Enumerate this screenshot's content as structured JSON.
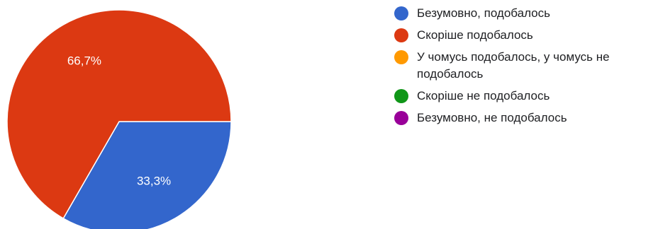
{
  "chart_data": {
    "type": "pie",
    "title": "",
    "slices": [
      {
        "label": "Безумовно, подобалось",
        "value": 33.3,
        "display": "33,3%",
        "color": "#3366cc"
      },
      {
        "label": "Скоріше подобалось",
        "value": 66.7,
        "display": "66,7%",
        "color": "#dc3912"
      },
      {
        "label": "У чомусь подобалось, у чомусь не подобалось",
        "value": 0,
        "display": "",
        "color": "#ff9900"
      },
      {
        "label": "Скоріше не подобалось",
        "value": 0,
        "display": "",
        "color": "#109618"
      },
      {
        "label": "Безумовно, не подобалось",
        "value": 0,
        "display": "",
        "color": "#990099"
      }
    ],
    "legend_position": "right"
  }
}
